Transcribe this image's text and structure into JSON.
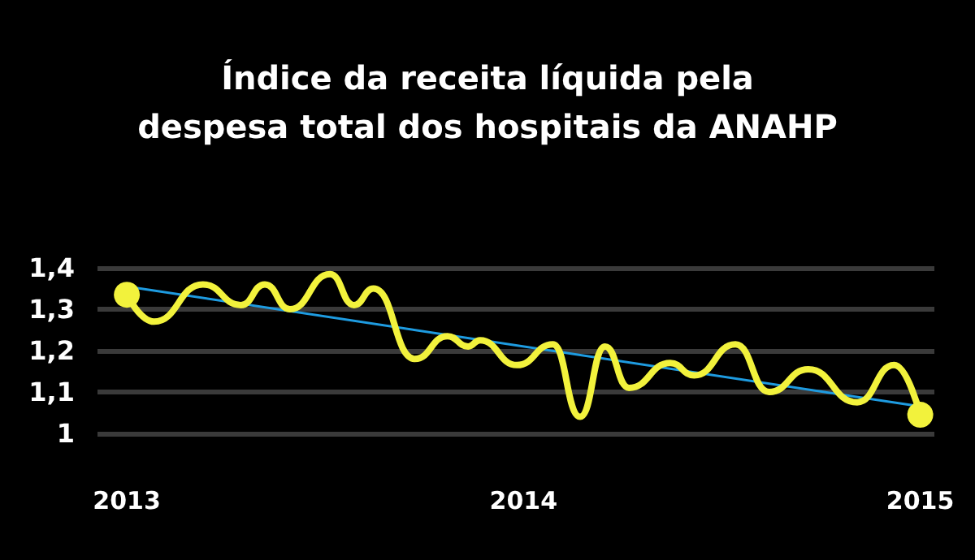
{
  "chart_data": {
    "type": "line",
    "title": "Índice da receita líquida pela\ndespesa total dos hospitais da ANAHP",
    "xlim": [
      "2012-12-05",
      "2015-01-14"
    ],
    "xticks": [
      {
        "value": "2013-01-01",
        "label": "2013"
      },
      {
        "value": "2014-01-01",
        "label": "2014"
      },
      {
        "value": "2015-01-01",
        "label": "2015"
      }
    ],
    "ylim": [
      1,
      1.4
    ],
    "yticks": [
      1,
      {
        "value": 1.1,
        "label": "1,1"
      },
      {
        "value": 1.2,
        "label": "1,2"
      },
      {
        "value": 1.3,
        "label": "1,3"
      },
      {
        "value": 1.4,
        "label": "1,4"
      }
    ],
    "grid": "y",
    "line_style": "solid",
    "series": [
      {
        "color": "#f2f23c",
        "x": [
          "2013-01-01",
          "2013-01-26",
          "2013-03-12",
          "2013-04-16",
          "2013-05-08",
          "2013-05-31",
          "2013-07-07",
          "2013-07-29",
          "2013-08-16",
          "2013-09-23",
          "2013-10-23",
          "2013-11-11",
          "2013-11-22",
          "2013-12-26",
          "2014-01-28",
          "2014-02-22",
          "2014-03-17",
          "2014-04-08",
          "2014-05-16",
          "2014-06-07",
          "2014-07-15",
          "2014-08-15",
          "2014-09-20",
          "2014-11-04",
          "2014-12-08",
          "2015-01-01"
        ],
        "values": [
          1.335,
          1.27,
          1.36,
          1.31,
          1.36,
          1.3,
          1.385,
          1.31,
          1.35,
          1.18,
          1.235,
          1.21,
          1.225,
          1.165,
          1.215,
          1.04,
          1.21,
          1.11,
          1.17,
          1.14,
          1.215,
          1.1,
          1.155,
          1.075,
          1.165,
          1.045
        ]
      },
      {
        "type": "line",
        "color": "#1e9be0",
        "x": [
          "2013-01-01",
          "2015-01-01"
        ],
        "values": [
          1.355,
          1.065
        ]
      }
    ]
  }
}
